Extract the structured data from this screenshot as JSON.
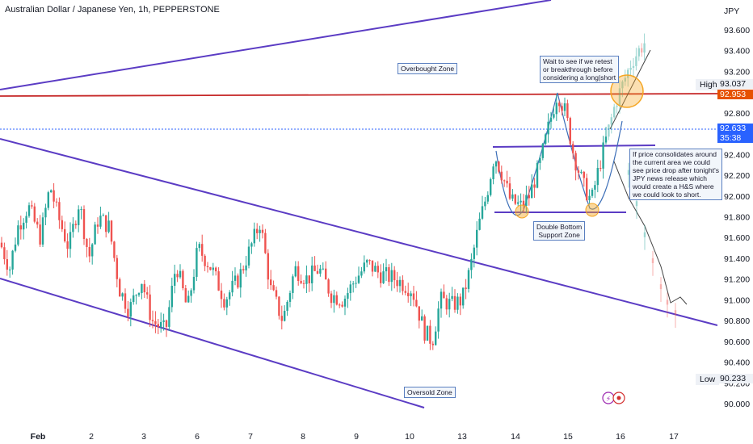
{
  "header": {
    "title": "Australian Dollar / Japanese Yen, 1h, PEPPERSTONE",
    "currency": "JPY"
  },
  "price_scale": {
    "labels": [
      "93.600",
      "93.400",
      "93.200",
      "93.000",
      "92.800",
      "92.600",
      "92.400",
      "92.200",
      "92.000",
      "91.800",
      "91.600",
      "91.400",
      "91.200",
      "91.000",
      "90.800",
      "90.600",
      "90.400",
      "90.200",
      "90.000"
    ],
    "high_label": "High",
    "high_value": "93.037",
    "low_label": "Low",
    "low_value": "90.233",
    "red_line_value": "92.953",
    "current_value": "92.633",
    "countdown": "35:38"
  },
  "time_axis": {
    "labels": [
      "Feb",
      "2",
      "3",
      "6",
      "7",
      "8",
      "9",
      "10",
      "13",
      "14",
      "15",
      "16",
      "17"
    ]
  },
  "annotations": {
    "overbought": "Overbought Zone",
    "oversold": "Oversold Zone",
    "double_bottom": [
      "Double Bottom",
      "Support Zone"
    ],
    "retest": [
      "Wait to see if we retest",
      "or breakthrough before",
      "considering a long|short"
    ],
    "consolidation": [
      "If price consolidates around",
      "the current area we could",
      "see price drop after tonight's",
      "JPY news release which",
      "would create a H&S where",
      "we could look to short."
    ]
  },
  "colors": {
    "up": "#26a69a",
    "down": "#ef5350",
    "trendline": "#5b3cc4",
    "red_line": "#c62828",
    "blue_accent": "#2962ff",
    "orange": "#f5a623"
  },
  "chart_data": {
    "type": "line",
    "title": "Australian Dollar / Japanese Yen, 1h, PEPPERSTONE",
    "ylim": [
      90.0,
      93.7
    ],
    "x": [
      "Feb",
      "2",
      "3",
      "6",
      "7",
      "8",
      "9",
      "10",
      "13",
      "14",
      "15",
      "16",
      "17"
    ],
    "series": [
      {
        "values": [
          91.5,
          91.9,
          91.0,
          90.9,
          91.7,
          91.1,
          91.3,
          90.9,
          91.5,
          91.9,
          92.9,
          92.6,
          91.0
        ]
      }
    ]
  }
}
